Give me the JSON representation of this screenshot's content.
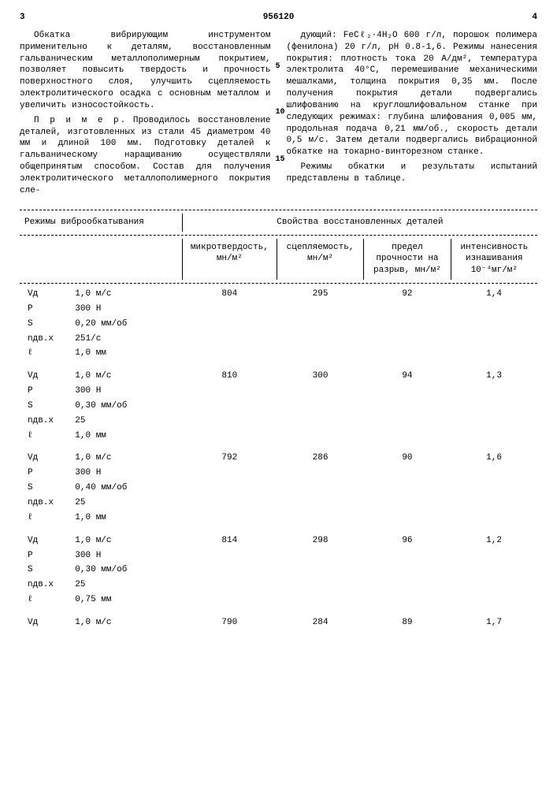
{
  "header": {
    "page_left": "3",
    "doc_num": "956120",
    "page_right": "4"
  },
  "left_col": {
    "p1": "Обкатка вибрирующим инструментом применительно к деталям, восстановленным гальваническим металлополимерным покрытием, позволяет повысить твердость и прочность поверхностного слоя, улучшить сцепляемость электролитического осадка с основным металлом и увеличить износостойкость.",
    "p2_label": "П р и м е р",
    "p2": ". Проводилось восстановление деталей, изготовленных из стали 45 диаметром 40 мм и длиной 100 мм. Подготовку деталей к гальваническому наращиванию осуществляли общепринятым способом. Состав для получения электролитического металлополимерного покрытия сле-"
  },
  "right_col": {
    "p1": "дующий: FeCℓ₂·4H₂O 600 г/л, порошок полимера (фенилона) 20 г/л, pH 0.8-1,6. Режимы нанесения покрытия: плотность тока 20 А/дм², температура электролита 40°С, перемешивание механическими мешалками, толщина покрытия 0,35 мм. После получения покрытия детали подвергались шлифованию на круглошлифовальном станке при следующих режимах: глубина шлифования 0,005 мм, продольная подача 0,21 мм/об., скорость детали 0,5 м/с. Затем детали подвергались вибрационной обкатке на токарно-винторезном станке.",
    "p2": "Режимы обкатки и результаты испытаний представлены в таблице."
  },
  "line_markers": {
    "m5": "5",
    "m10": "10",
    "m15": "15"
  },
  "table": {
    "group_left": "Режимы виброобкатывания",
    "group_right": "Свойства восстановленных деталей",
    "cols": {
      "c1": "микротвердость, мн/м²",
      "c2": "сцепляемость, мн/м²",
      "c3": "предел прочности на разрыв, мн/м²",
      "c4": "интенсивность изнашивания 10⁻⁴мг/м²"
    },
    "sets": [
      {
        "vals": [
          "804",
          "295",
          "92",
          "1,4"
        ],
        "params": [
          [
            "Vд",
            "1,0 м/с"
          ],
          [
            "P",
            "300 Н"
          ],
          [
            "S",
            "0,20 мм/об"
          ],
          [
            "nдв.x",
            "251/с"
          ],
          [
            "ℓ",
            "1,0 мм"
          ]
        ]
      },
      {
        "vals": [
          "810",
          "300",
          "94",
          "1,3"
        ],
        "params": [
          [
            "Vд",
            "1,0 м/с"
          ],
          [
            "P",
            "300 Н"
          ],
          [
            "S",
            "0,30 мм/об"
          ],
          [
            "nдв.x",
            "25"
          ],
          [
            "ℓ",
            "1,0 мм"
          ]
        ]
      },
      {
        "vals": [
          "792",
          "286",
          "90",
          "1,6"
        ],
        "params": [
          [
            "Vд",
            "1,0 м/с"
          ],
          [
            "P",
            "300 Н"
          ],
          [
            "S",
            "0,40 мм/об"
          ],
          [
            "nдв.x",
            "25"
          ],
          [
            "ℓ",
            "1,0 мм"
          ]
        ]
      },
      {
        "vals": [
          "814",
          "298",
          "96",
          "1,2"
        ],
        "params": [
          [
            "Vд",
            "1,0 м/с"
          ],
          [
            "P",
            "300 Н"
          ],
          [
            "S",
            "0,30 мм/об"
          ],
          [
            "nдв.x",
            "25"
          ],
          [
            "ℓ",
            "0,75 мм"
          ]
        ]
      },
      {
        "vals": [
          "790",
          "284",
          "89",
          "1,7"
        ],
        "params": [
          [
            "Vд",
            "1,0 м/с"
          ]
        ]
      }
    ]
  }
}
